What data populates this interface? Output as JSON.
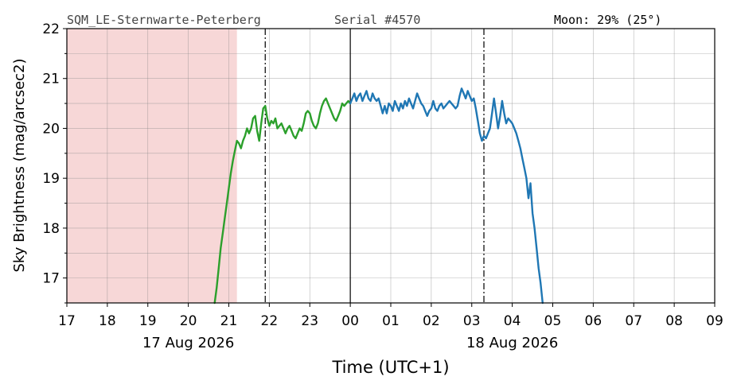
{
  "header": {
    "station": "SQM_LE-Sternwarte-Peterberg",
    "serial": "Serial #4570",
    "moon": "Moon: 29% (25°)"
  },
  "chart_data": {
    "type": "line",
    "xlabel": "Time (UTC+1)",
    "ylabel": "Sky Brightness (mag/arcsec2)",
    "xlim": [
      17,
      33
    ],
    "ylim": [
      16.5,
      22
    ],
    "x_unit": "hours since 17 Aug 2026 00:00 (UTC+1)",
    "x_tick_labels": [
      "17",
      "18",
      "19",
      "20",
      "21",
      "22",
      "23",
      "00",
      "01",
      "02",
      "03",
      "04",
      "05",
      "06",
      "07",
      "08",
      "09"
    ],
    "y_ticks": [
      17,
      18,
      19,
      20,
      21,
      22
    ],
    "date_labels": [
      {
        "text": "17 Aug 2026",
        "x": 20
      },
      {
        "text": "18 Aug 2026",
        "x": 28
      }
    ],
    "grid": true,
    "twilight_band": {
      "from": 17,
      "to": 21.2,
      "color": "#f7d7d7"
    },
    "markers": {
      "midnight": 24,
      "dash_dot": [
        21.9,
        27.3
      ]
    },
    "series": [
      {
        "color": "#2ca02c",
        "points": [
          [
            20.65,
            16.5
          ],
          [
            20.7,
            16.8
          ],
          [
            20.75,
            17.2
          ],
          [
            20.8,
            17.6
          ],
          [
            20.85,
            17.9
          ],
          [
            20.9,
            18.2
          ],
          [
            20.95,
            18.5
          ],
          [
            21.0,
            18.8
          ],
          [
            21.05,
            19.1
          ],
          [
            21.1,
            19.35
          ],
          [
            21.15,
            19.55
          ],
          [
            21.2,
            19.75
          ],
          [
            21.25,
            19.7
          ],
          [
            21.3,
            19.6
          ],
          [
            21.35,
            19.75
          ],
          [
            21.4,
            19.85
          ],
          [
            21.45,
            20.0
          ],
          [
            21.5,
            19.9
          ],
          [
            21.55,
            20.0
          ],
          [
            21.6,
            20.2
          ],
          [
            21.65,
            20.25
          ],
          [
            21.7,
            19.95
          ],
          [
            21.75,
            19.75
          ],
          [
            21.8,
            20.1
          ],
          [
            21.85,
            20.4
          ],
          [
            21.9,
            20.45
          ],
          [
            21.95,
            20.2
          ],
          [
            22.0,
            20.05
          ],
          [
            22.05,
            20.15
          ],
          [
            22.1,
            20.1
          ],
          [
            22.15,
            20.2
          ],
          [
            22.2,
            20.0
          ],
          [
            22.25,
            20.05
          ],
          [
            22.3,
            20.1
          ],
          [
            22.35,
            20.0
          ],
          [
            22.4,
            19.9
          ],
          [
            22.45,
            20.0
          ],
          [
            22.5,
            20.05
          ],
          [
            22.55,
            19.95
          ],
          [
            22.6,
            19.85
          ],
          [
            22.65,
            19.8
          ],
          [
            22.7,
            19.9
          ],
          [
            22.75,
            20.0
          ],
          [
            22.8,
            19.95
          ],
          [
            22.85,
            20.1
          ],
          [
            22.9,
            20.3
          ],
          [
            22.95,
            20.35
          ],
          [
            23.0,
            20.3
          ],
          [
            23.05,
            20.15
          ],
          [
            23.1,
            20.05
          ],
          [
            23.15,
            20.0
          ],
          [
            23.2,
            20.1
          ],
          [
            23.25,
            20.3
          ],
          [
            23.3,
            20.45
          ],
          [
            23.35,
            20.55
          ],
          [
            23.4,
            20.6
          ],
          [
            23.45,
            20.5
          ],
          [
            23.5,
            20.4
          ],
          [
            23.55,
            20.3
          ],
          [
            23.6,
            20.2
          ],
          [
            23.65,
            20.15
          ],
          [
            23.7,
            20.25
          ],
          [
            23.75,
            20.35
          ],
          [
            23.8,
            20.5
          ],
          [
            23.85,
            20.45
          ],
          [
            23.9,
            20.5
          ],
          [
            23.95,
            20.55
          ],
          [
            24.0,
            20.5
          ]
        ]
      },
      {
        "color": "#1f77b4",
        "points": [
          [
            24.0,
            20.5
          ],
          [
            24.05,
            20.6
          ],
          [
            24.1,
            20.7
          ],
          [
            24.15,
            20.55
          ],
          [
            24.2,
            20.65
          ],
          [
            24.25,
            20.7
          ],
          [
            24.3,
            20.55
          ],
          [
            24.35,
            20.65
          ],
          [
            24.4,
            20.75
          ],
          [
            24.45,
            20.6
          ],
          [
            24.5,
            20.55
          ],
          [
            24.55,
            20.7
          ],
          [
            24.6,
            20.6
          ],
          [
            24.65,
            20.55
          ],
          [
            24.7,
            20.6
          ],
          [
            24.75,
            20.45
          ],
          [
            24.8,
            20.3
          ],
          [
            24.85,
            20.45
          ],
          [
            24.9,
            20.3
          ],
          [
            24.95,
            20.5
          ],
          [
            25.0,
            20.45
          ],
          [
            25.05,
            20.35
          ],
          [
            25.1,
            20.55
          ],
          [
            25.15,
            20.45
          ],
          [
            25.2,
            20.35
          ],
          [
            25.25,
            20.5
          ],
          [
            25.3,
            20.4
          ],
          [
            25.35,
            20.55
          ],
          [
            25.4,
            20.45
          ],
          [
            25.45,
            20.6
          ],
          [
            25.5,
            20.5
          ],
          [
            25.55,
            20.4
          ],
          [
            25.6,
            20.55
          ],
          [
            25.65,
            20.7
          ],
          [
            25.7,
            20.6
          ],
          [
            25.75,
            20.5
          ],
          [
            25.8,
            20.45
          ],
          [
            25.85,
            20.35
          ],
          [
            25.9,
            20.25
          ],
          [
            25.95,
            20.35
          ],
          [
            26.0,
            20.4
          ],
          [
            26.05,
            20.55
          ],
          [
            26.1,
            20.4
          ],
          [
            26.15,
            20.35
          ],
          [
            26.2,
            20.45
          ],
          [
            26.25,
            20.5
          ],
          [
            26.3,
            20.4
          ],
          [
            26.35,
            20.45
          ],
          [
            26.4,
            20.5
          ],
          [
            26.45,
            20.55
          ],
          [
            26.5,
            20.5
          ],
          [
            26.55,
            20.45
          ],
          [
            26.6,
            20.4
          ],
          [
            26.65,
            20.45
          ],
          [
            26.7,
            20.65
          ],
          [
            26.75,
            20.8
          ],
          [
            26.8,
            20.7
          ],
          [
            26.85,
            20.6
          ],
          [
            26.9,
            20.75
          ],
          [
            26.95,
            20.65
          ],
          [
            27.0,
            20.55
          ],
          [
            27.05,
            20.6
          ],
          [
            27.1,
            20.4
          ],
          [
            27.15,
            20.15
          ],
          [
            27.2,
            19.9
          ],
          [
            27.25,
            19.75
          ],
          [
            27.3,
            19.85
          ],
          [
            27.35,
            19.8
          ],
          [
            27.4,
            19.9
          ],
          [
            27.45,
            20.0
          ],
          [
            27.5,
            20.3
          ],
          [
            27.55,
            20.6
          ],
          [
            27.6,
            20.3
          ],
          [
            27.65,
            20.0
          ],
          [
            27.7,
            20.25
          ],
          [
            27.75,
            20.55
          ],
          [
            27.8,
            20.3
          ],
          [
            27.85,
            20.1
          ],
          [
            27.9,
            20.2
          ],
          [
            27.95,
            20.15
          ],
          [
            28.0,
            20.1
          ],
          [
            28.05,
            20.0
          ],
          [
            28.1,
            19.9
          ],
          [
            28.15,
            19.75
          ],
          [
            28.2,
            19.6
          ],
          [
            28.25,
            19.4
          ],
          [
            28.3,
            19.2
          ],
          [
            28.35,
            19.0
          ],
          [
            28.4,
            18.6
          ],
          [
            28.45,
            18.9
          ],
          [
            28.5,
            18.3
          ],
          [
            28.55,
            18.0
          ],
          [
            28.6,
            17.6
          ],
          [
            28.65,
            17.2
          ],
          [
            28.7,
            16.9
          ],
          [
            28.75,
            16.5
          ]
        ]
      }
    ]
  }
}
